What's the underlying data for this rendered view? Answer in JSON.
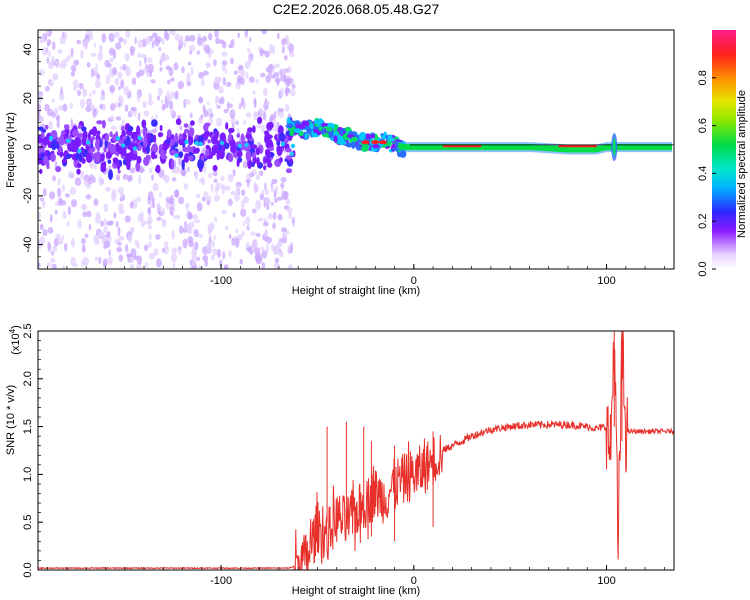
{
  "title": "C2E2.2026.068.05.48.G27",
  "chart_data": [
    {
      "type": "heatmap",
      "name": "spectrogram",
      "xlabel": "Height of straight line (km)",
      "ylabel": "Frequency (Hz)",
      "xlim": [
        -195,
        135
      ],
      "ylim": [
        -50,
        48
      ],
      "xticks": [
        -100,
        0,
        100
      ],
      "xtick_labels": [
        "-100",
        "0",
        "100"
      ],
      "yticks": [
        -40,
        -20,
        0,
        20,
        40
      ],
      "ytick_labels": [
        "-40",
        "-20",
        "0",
        "20",
        "40"
      ],
      "colorbar": {
        "label": "Normalized spectral amplitude",
        "range": [
          0.0,
          1.0
        ],
        "ticks": [
          0.0,
          0.2,
          0.4,
          0.6,
          0.8
        ],
        "tick_labels": [
          "0.0",
          "0.2",
          "0.4",
          "0.6",
          "0.8"
        ]
      },
      "signal_track": {
        "x": [
          -65,
          -55,
          -50,
          -45,
          -40,
          -35,
          -30,
          -25,
          -20,
          -15,
          -10,
          -5,
          0,
          10,
          30,
          60,
          80,
          95,
          100,
          110,
          135
        ],
        "frequency": [
          8,
          7,
          8,
          6,
          5,
          4,
          3,
          2,
          2,
          2,
          1,
          0,
          0,
          0,
          0,
          0,
          -1,
          -1,
          0,
          0,
          0
        ]
      }
    },
    {
      "type": "line",
      "name": "snr",
      "xlabel": "Height of straight line (km)",
      "ylabel": "SNR (10 * v/v)",
      "scale_label": "(x10",
      "scale_exponent": "4",
      "scale_suffix": ")",
      "xlim": [
        -195,
        135
      ],
      "ylim": [
        0,
        2.5
      ],
      "xticks": [
        -100,
        0,
        100
      ],
      "xtick_labels": [
        "-100",
        "0",
        "100"
      ],
      "yticks": [
        0.0,
        0.5,
        1.0,
        1.5,
        2.0,
        2.5
      ],
      "ytick_labels": [
        "0.0",
        "0.5",
        "1.0",
        "1.5",
        "2.0",
        "2.5"
      ],
      "color": "#e8302a",
      "envelope": {
        "x": [
          -195,
          -65,
          -60,
          -55,
          -50,
          -45,
          -40,
          -35,
          -30,
          -25,
          -20,
          -15,
          -10,
          -5,
          0,
          5,
          10,
          15,
          20,
          30,
          40,
          50,
          60,
          70,
          80,
          90,
          95,
          100,
          102,
          104,
          106,
          108,
          110,
          120,
          135
        ],
        "y": [
          0.02,
          0.02,
          0.05,
          0.15,
          0.45,
          0.35,
          0.55,
          0.5,
          0.6,
          0.7,
          0.8,
          0.75,
          0.9,
          0.95,
          1.0,
          1.05,
          1.15,
          1.25,
          1.3,
          1.4,
          1.47,
          1.5,
          1.52,
          1.52,
          1.52,
          1.5,
          1.48,
          1.5,
          1.2,
          2.5,
          0.2,
          2.35,
          1.45,
          1.45,
          1.45
        ]
      },
      "spikes": [
        {
          "x": -45,
          "y": 1.5
        },
        {
          "x": -35,
          "y": 1.55
        },
        {
          "x": -26,
          "y": 1.5
        },
        {
          "x": -22,
          "y": 1.35
        },
        {
          "x": -10,
          "y": 1.3
        },
        {
          "x": 10,
          "y": 1.45
        },
        {
          "x": 104,
          "y": 2.5
        },
        {
          "x": 108,
          "y": 2.35
        }
      ]
    }
  ]
}
